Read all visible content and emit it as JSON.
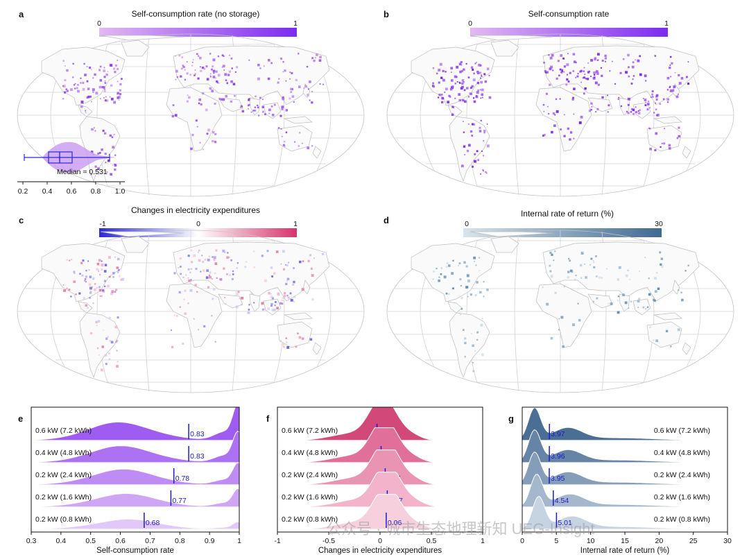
{
  "panels": {
    "a": {
      "label": "a",
      "title": "Self-consumption rate (no storage)",
      "cb_min": "0",
      "cb_max": "1",
      "colors": [
        "#e3b8f2",
        "#7b2cf0"
      ],
      "palette": [
        "#c58cf2",
        "#a65ee9",
        "#8a3de6",
        "#9b58f0"
      ]
    },
    "b": {
      "label": "b",
      "title": "Self-consumption rate",
      "cb_min": "0",
      "cb_max": "1",
      "colors": [
        "#e3b8f2",
        "#7b2cf0"
      ],
      "palette": [
        "#9b4ff0",
        "#8230e6",
        "#a65cef",
        "#7228dd"
      ]
    },
    "c": {
      "label": "c",
      "title": "Changes in electricity expenditures",
      "cb_min": "-1",
      "cb_mid": "0",
      "cb_max": "1",
      "colors": [
        "#2b2bd6",
        "#ffffff",
        "#d6336c"
      ],
      "palette": [
        "#f2a0c0",
        "#e77aa5",
        "#9a9af0",
        "#c9c9f5",
        "#f5c6d8",
        "#6b6be8"
      ]
    },
    "d": {
      "label": "d",
      "title": "Internal rate of return (%)",
      "cb_min": "0",
      "cb_max": "30",
      "colors": [
        "#d8e4ec",
        "#3f6a92"
      ],
      "palette": [
        "#b9cfde",
        "#9ab8cf",
        "#7aa0bd",
        "#5a86aa",
        "#cfdde8"
      ]
    }
  },
  "inset": {
    "median_label": "Median = 0.531",
    "ticks": [
      "0.2",
      "0.4",
      "0.6",
      "0.8",
      "1.0"
    ]
  },
  "chart_data": [
    {
      "type": "area",
      "title": "",
      "panel": "e",
      "xlabel": "Self-consumption rate",
      "xlim": [
        0.3,
        1.0
      ],
      "xticks": [
        "0.3",
        "0.4",
        "0.5",
        "0.6",
        "0.7",
        "0.8",
        "0.9",
        "1"
      ],
      "series": [
        {
          "name": "0.6 kW (7.2 kWh)",
          "median": 0.83,
          "label": "0.83",
          "color": "#9e5cf0"
        },
        {
          "name": "0.4 kW (4.8 kWh)",
          "median": 0.83,
          "label": "0.83",
          "color": "#ad72f2"
        },
        {
          "name": "0.2 kW (2.4 kWh)",
          "median": 0.78,
          "label": "0.78",
          "color": "#bf8cf4"
        },
        {
          "name": "0.2 kW (1.6 kWh)",
          "median": 0.77,
          "label": "0.77",
          "color": "#cfa6f6"
        },
        {
          "name": "0.2 kW (0.8 kWh)",
          "median": 0.68,
          "label": "0.68",
          "color": "#e2c8f8"
        }
      ]
    },
    {
      "type": "area",
      "title": "",
      "panel": "f",
      "xlabel": "Changes in electricity expenditures",
      "xlim": [
        -1,
        1
      ],
      "xticks": [
        "-1",
        "-0.5",
        "0",
        "0.5",
        "1"
      ],
      "series": [
        {
          "name": "0.6 kW (7.2 kWh)",
          "median": -0.03,
          "label": "-0.03",
          "color": "#d24878"
        },
        {
          "name": "0.4 kW (4.8 kWh)",
          "median": 0.01,
          "label": "0.01",
          "color": "#e0709a"
        },
        {
          "name": "0.2 kW (2.4 kWh)",
          "median": 0.05,
          "label": "0.05",
          "color": "#ea94b4"
        },
        {
          "name": "0.2 kW (1.6 kWh)",
          "median": 0.07,
          "label": "0.07",
          "color": "#f2b3cb"
        },
        {
          "name": "0.2 kW (0.8 kWh)",
          "median": 0.06,
          "label": "0.06",
          "color": "#f7d0de"
        }
      ]
    },
    {
      "type": "area",
      "title": "",
      "panel": "g",
      "xlabel": "Internal rate of return (%)",
      "xlim": [
        0,
        30
      ],
      "xticks": [
        "0",
        "5",
        "10",
        "15",
        "20",
        "25",
        "30"
      ],
      "series": [
        {
          "name": "0.6 kW (7.2 kWh)",
          "median": 3.97,
          "label": "3.97",
          "color": "#4b6f94"
        },
        {
          "name": "0.4 kW (4.8 kWh)",
          "median": 3.96,
          "label": "3.96",
          "color": "#6685a6"
        },
        {
          "name": "0.2 kW (2.4 kWh)",
          "median": 3.95,
          "label": "3.95",
          "color": "#849db9"
        },
        {
          "name": "0.2 kW (1.6 kWh)",
          "median": 4.54,
          "label": "4.54",
          "color": "#a4b7cc"
        },
        {
          "name": "0.2 kW (0.8 kWh)",
          "median": 5.01,
          "label": "5.01",
          "color": "#c6d3e0"
        }
      ]
    }
  ],
  "watermark": "公众号 · 城市生态地理新知 UEG-Insight"
}
